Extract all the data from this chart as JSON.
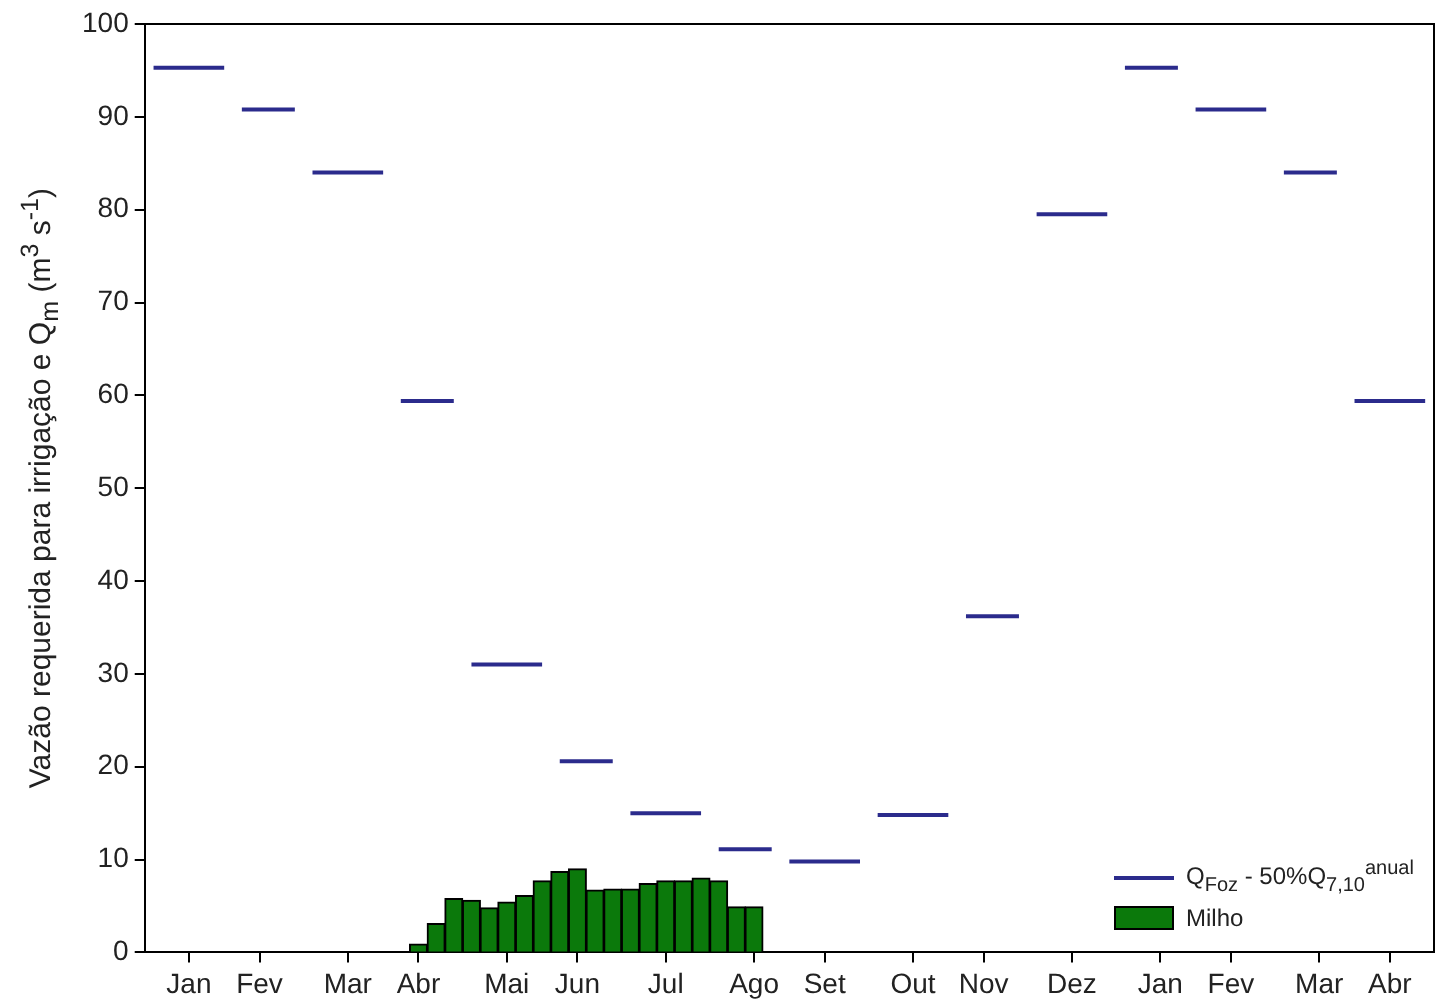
{
  "chart_data": {
    "type": "bar",
    "categories": [
      null,
      null,
      "Jan",
      null,
      null,
      null,
      "Fev",
      null,
      null,
      null,
      null,
      "Mar",
      null,
      null,
      null,
      "Abr",
      null,
      null,
      null,
      null,
      "Mai",
      null,
      null,
      null,
      "Jun",
      null,
      null,
      null,
      null,
      "Jul",
      null,
      null,
      null,
      null,
      "Ago",
      null,
      null,
      null,
      "Set",
      null,
      null,
      null,
      null,
      "Out",
      null,
      null,
      null,
      "Nov",
      null,
      null,
      null,
      null,
      "Dez",
      null,
      null,
      null,
      null,
      "Jan",
      null,
      null,
      null,
      "Fev",
      null,
      null,
      null,
      null,
      "Mar",
      null,
      null,
      null,
      "Abr",
      null,
      null
    ],
    "ylabel": "Vazão requerida para irrigação e Q$_{m}$ (m$^{3}$ s$^{-1}$)",
    "ylim": [
      0,
      100
    ],
    "yticks": [
      0,
      10,
      20,
      30,
      40,
      50,
      60,
      70,
      80,
      90,
      100
    ],
    "series": [
      {
        "name": "Q$_{Foz}$ - 50%Q$_{7,10}$$^{anual}$",
        "type": "line",
        "color": "#2b2b8c",
        "values": [
          95.3,
          95.3,
          95.3,
          95.3,
          95.3,
          90.8,
          90.8,
          90.8,
          90.8,
          84,
          84,
          84,
          84,
          84,
          59.4,
          59.4,
          59.4,
          59.4,
          31,
          31,
          31,
          31,
          31,
          20.6,
          20.6,
          20.6,
          20.6,
          15,
          15,
          15,
          15,
          15,
          11.1,
          11.1,
          11.1,
          11.1,
          9.8,
          9.8,
          9.8,
          9.8,
          9.8,
          14.8,
          14.8,
          14.8,
          14.8,
          14.8,
          36.2,
          36.2,
          36.2,
          36.2,
          79.5,
          79.5,
          79.5,
          79.5,
          79.5,
          95.3,
          95.3,
          95.3,
          95.3,
          90.8,
          90.8,
          90.8,
          90.8,
          90.8,
          84,
          84,
          84,
          84,
          59.4,
          59.4,
          59.4,
          59.4,
          59.4
        ]
      },
      {
        "name": "Milho",
        "color": "#0b790b",
        "values": [
          null,
          null,
          null,
          null,
          null,
          null,
          null,
          null,
          null,
          null,
          null,
          null,
          null,
          null,
          null,
          0.9,
          3.1,
          5.8,
          5.6,
          4.8,
          5.4,
          6.1,
          7.7,
          8.7,
          9.0,
          6.7,
          6.8,
          6.8,
          7.4,
          7.7,
          7.7,
          8.0,
          7.7,
          4.9,
          4.9,
          null,
          null,
          null,
          null,
          null,
          null,
          null,
          null,
          null,
          null,
          null,
          null,
          null,
          null,
          null,
          null,
          null,
          null,
          null,
          null,
          null,
          null,
          null,
          null,
          null,
          null,
          null,
          null,
          null,
          null,
          null,
          null,
          null,
          null,
          null,
          null,
          null,
          null
        ]
      }
    ],
    "legend": "bottom right",
    "grid": false
  }
}
